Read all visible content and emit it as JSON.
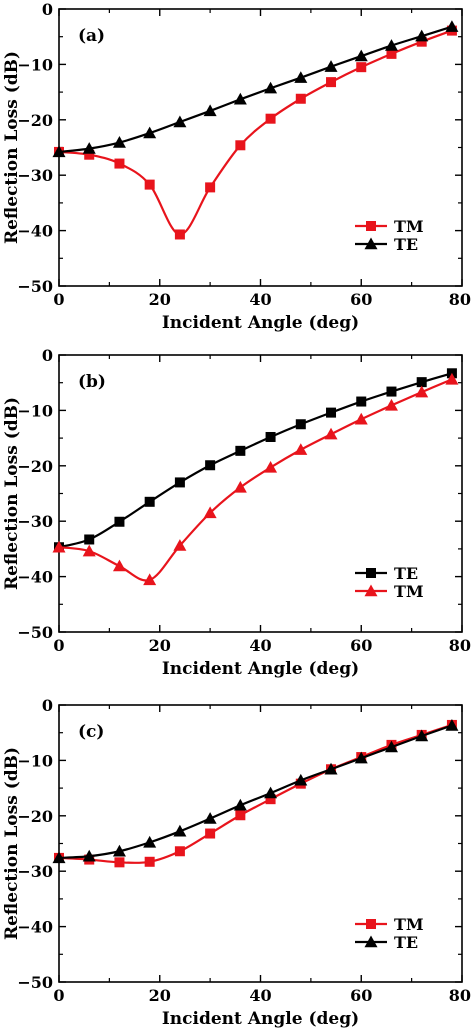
{
  "chart_data": [
    {
      "type": "line",
      "panel_label": "(a)",
      "xlabel": "Incident Angle (deg)",
      "ylabel": "Reflection Loss (dB)",
      "xlim": [
        0,
        80
      ],
      "ylim": [
        -50,
        0
      ],
      "xticks": [
        0,
        20,
        40,
        60,
        80
      ],
      "yticks": [
        0,
        -10,
        -20,
        -30,
        -40,
        -50
      ],
      "grid": false,
      "legend_position": "lower-right",
      "series": [
        {
          "name": "TM",
          "color": "#e8141c",
          "marker": "square",
          "x": [
            0,
            6,
            12,
            18,
            24,
            30,
            36,
            42,
            48,
            54,
            60,
            66,
            72,
            78
          ],
          "y": [
            -25.8,
            -26.3,
            -27.9,
            -31.7,
            -40.7,
            -32.2,
            -24.6,
            -19.8,
            -16.2,
            -13.2,
            -10.5,
            -8.1,
            -5.9,
            -3.9
          ]
        },
        {
          "name": "TE",
          "color": "#000000",
          "marker": "triangle",
          "x": [
            0,
            6,
            12,
            18,
            24,
            30,
            36,
            42,
            48,
            54,
            60,
            66,
            72,
            78
          ],
          "y": [
            -25.8,
            -25.2,
            -24.1,
            -22.4,
            -20.4,
            -18.4,
            -16.3,
            -14.3,
            -12.4,
            -10.4,
            -8.5,
            -6.6,
            -4.9,
            -3.2
          ]
        }
      ]
    },
    {
      "type": "line",
      "panel_label": "(b)",
      "xlabel": "Incident Angle (deg)",
      "ylabel": "Reflection Loss (dB)",
      "xlim": [
        0,
        80
      ],
      "ylim": [
        -50,
        0
      ],
      "xticks": [
        0,
        20,
        40,
        60,
        80
      ],
      "yticks": [
        0,
        -10,
        -20,
        -30,
        -40,
        -50
      ],
      "grid": false,
      "legend_position": "lower-right",
      "series": [
        {
          "name": "TE",
          "color": "#000000",
          "marker": "square",
          "x": [
            0,
            6,
            12,
            18,
            24,
            30,
            36,
            42,
            48,
            54,
            60,
            66,
            72,
            78
          ],
          "y": [
            -34.7,
            -33.3,
            -30.1,
            -26.5,
            -23.0,
            -19.9,
            -17.3,
            -14.8,
            -12.5,
            -10.4,
            -8.4,
            -6.6,
            -4.9,
            -3.3
          ]
        },
        {
          "name": "TM",
          "color": "#e8141c",
          "marker": "triangle",
          "x": [
            0,
            6,
            12,
            18,
            24,
            30,
            36,
            42,
            48,
            54,
            60,
            66,
            72,
            78
          ],
          "y": [
            -34.7,
            -35.4,
            -38.1,
            -40.6,
            -34.4,
            -28.5,
            -23.9,
            -20.3,
            -17.1,
            -14.3,
            -11.6,
            -9.1,
            -6.7,
            -4.4
          ]
        }
      ]
    },
    {
      "type": "line",
      "panel_label": "(c)",
      "xlabel": "Incident Angle (deg)",
      "ylabel": "Reflection Loss (dB)",
      "xlim": [
        0,
        80
      ],
      "ylim": [
        -50,
        0
      ],
      "xticks": [
        0,
        20,
        40,
        60,
        80
      ],
      "yticks": [
        0,
        -10,
        -20,
        -30,
        -40,
        -50
      ],
      "grid": false,
      "legend_position": "lower-right",
      "series": [
        {
          "name": "TM",
          "color": "#e8141c",
          "marker": "square",
          "x": [
            0,
            6,
            12,
            18,
            24,
            30,
            36,
            42,
            48,
            54,
            60,
            66,
            72,
            78
          ],
          "y": [
            -27.6,
            -27.9,
            -28.4,
            -28.3,
            -26.4,
            -23.2,
            -19.9,
            -17.0,
            -14.2,
            -11.6,
            -9.4,
            -7.2,
            -5.4,
            -3.6
          ]
        },
        {
          "name": "TE",
          "color": "#000000",
          "marker": "triangle",
          "x": [
            0,
            6,
            12,
            18,
            24,
            30,
            36,
            42,
            48,
            54,
            60,
            66,
            72,
            78
          ],
          "y": [
            -27.6,
            -27.3,
            -26.4,
            -24.8,
            -22.8,
            -20.5,
            -18.1,
            -15.9,
            -13.6,
            -11.6,
            -9.6,
            -7.6,
            -5.6,
            -3.7
          ]
        }
      ]
    }
  ]
}
